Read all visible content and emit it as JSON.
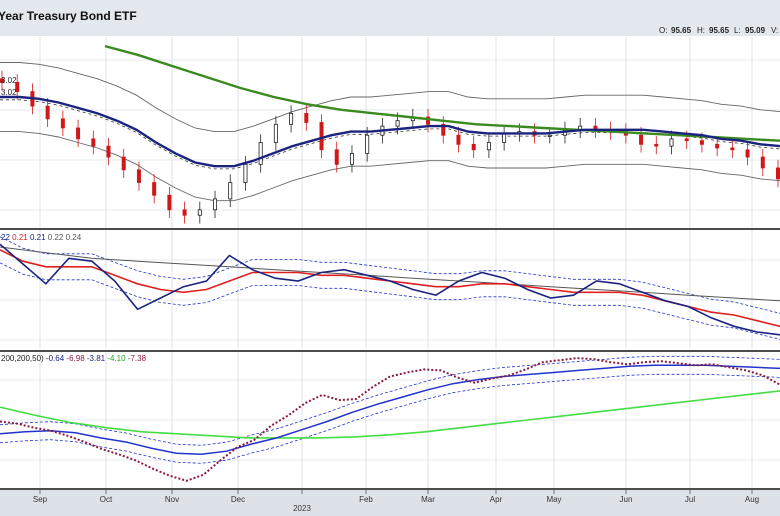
{
  "header": {
    "title": "Year Treasury Bond ETF",
    "ohlc": [
      {
        "label": "O:",
        "value": "95.65"
      },
      {
        "label": "H:",
        "value": "95.65"
      },
      {
        "label": "L:",
        "value": "95.09"
      },
      {
        "label": "V:",
        "value": ""
      }
    ]
  },
  "colors": {
    "background": "#ffffff",
    "header_bg": "#e3e7ee",
    "axis_bg": "#dde1e8",
    "grid": "#cfd5de",
    "candle_up": "#222222",
    "candle_down": "#d01818",
    "ma_short": "#1a237e",
    "ma_long": "#3a8a1f",
    "band": "#666666",
    "rsi_line": "#1a237e",
    "rsi_ma": "#e02020",
    "rsi_ma_long": "#555555",
    "pmo_dotted": "#8b1a3a",
    "pmo_ma": "#2233cc",
    "pmo_long": "#44dd44"
  },
  "panels": {
    "price": {
      "labels": [
        {
          "text": "3.02",
          "color": "#3a8a1f"
        },
        {
          "text": "3.02",
          "color": "#cc22cc"
        }
      ]
    },
    "rsi": {
      "label_segments": [
        {
          "text": "22",
          "color": "#1a237e"
        },
        {
          "text": " 0.21",
          "color": "#e02020"
        },
        {
          "text": " 0.21",
          "color": "#1a237e"
        },
        {
          "text": " 0.22",
          "color": "#555555"
        },
        {
          "text": " 0.24",
          "color": "#555555"
        }
      ]
    },
    "pmo": {
      "label_segments": [
        {
          "text": "200,200,50)",
          "color": "#222222"
        },
        {
          "text": " -0.64",
          "color": "#1a237e"
        },
        {
          "text": " -6.98",
          "color": "#8b1a3a"
        },
        {
          "text": " -3.81",
          "color": "#1a237e"
        },
        {
          "text": " -4.10",
          "color": "#22aa22"
        },
        {
          "text": " -7.38",
          "color": "#8b1a3a"
        }
      ]
    }
  },
  "chart_data": {
    "type": "line",
    "title": "Year Treasury Bond ETF",
    "xlabel": "",
    "ylabel": "",
    "x_ticks": [
      "Sep",
      "Oct",
      "Nov",
      "Dec",
      "2023",
      "Feb",
      "Mar",
      "Apr",
      "May",
      "Jun",
      "Jul",
      "Aug"
    ],
    "grid": true,
    "price_panel": {
      "series": [
        {
          "role": "price",
          "values": [
            101.5,
            101.0,
            100.2,
            99.5,
            99.0,
            98.4,
            98.0,
            97.4,
            96.7,
            96.0,
            95.3,
            94.5,
            94.2,
            94.5,
            95.1,
            96.0,
            97.0,
            98.2,
            99.2,
            99.8,
            99.3,
            97.8,
            97.0,
            97.6,
            98.6,
            99.1,
            99.4,
            99.6,
            99.2,
            98.6,
            98.1,
            97.8,
            98.2,
            98.7,
            98.8,
            98.6,
            98.6,
            98.9,
            99.1,
            98.9,
            98.8,
            98.6,
            98.1,
            98.0,
            98.4,
            98.3,
            98.1,
            97.9,
            97.8,
            97.4,
            96.8,
            96.2
          ]
        },
        {
          "role": "ma_short",
          "values": [
            100.7,
            100.7,
            100.6,
            100.4,
            100.1,
            99.8,
            99.4,
            98.9,
            98.2,
            97.6,
            97.1,
            96.9,
            96.9,
            97.2,
            97.6,
            98.0,
            98.3,
            98.6,
            98.8,
            98.8,
            98.9,
            99.0,
            99.1,
            99.1,
            98.8,
            98.7,
            98.7,
            98.7,
            98.7,
            98.8,
            98.9,
            98.9,
            98.9,
            98.9,
            98.8,
            98.7,
            98.6,
            98.4,
            98.3,
            98.1,
            98.0
          ]
        },
        {
          "role": "ma_long",
          "values": [
            103.5,
            103.0,
            102.4,
            101.8,
            101.2,
            100.7,
            100.3,
            100.0,
            99.8,
            99.6,
            99.4,
            99.2,
            99.1,
            99.0,
            98.9,
            98.8,
            98.7,
            98.6,
            98.5,
            98.4,
            98.3
          ]
        }
      ]
    },
    "rsi_panel": {
      "series": [
        {
          "role": "rsi",
          "values": [
            0.245,
            0.238,
            0.231,
            0.24,
            0.239,
            0.232,
            0.222,
            0.226,
            0.23,
            0.232,
            0.241,
            0.236,
            0.233,
            0.232,
            0.235,
            0.236,
            0.234,
            0.232,
            0.229,
            0.227,
            0.232,
            0.235,
            0.233,
            0.229,
            0.226,
            0.227,
            0.232,
            0.231,
            0.228,
            0.225,
            0.223,
            0.219,
            0.216,
            0.214,
            0.213
          ]
        },
        {
          "role": "rsi_ma",
          "values": [
            0.243,
            0.239,
            0.237,
            0.237,
            0.237,
            0.234,
            0.231,
            0.229,
            0.228,
            0.229,
            0.232,
            0.235,
            0.235,
            0.235,
            0.234,
            0.234,
            0.233,
            0.232,
            0.231,
            0.23,
            0.23,
            0.231,
            0.231,
            0.23,
            0.229,
            0.228,
            0.228,
            0.228,
            0.227,
            0.225,
            0.223,
            0.221,
            0.22,
            0.218,
            0.216
          ]
        },
        {
          "role": "rsi_ma_long",
          "values": [
            0.244,
            0.242,
            0.24,
            0.239,
            0.238,
            0.237,
            0.236,
            0.235,
            0.234,
            0.233,
            0.232,
            0.231,
            0.23,
            0.229,
            0.228,
            0.227,
            0.226,
            0.225
          ]
        }
      ]
    },
    "pmo_panel": {
      "series": [
        {
          "role": "pmo_dotted",
          "values": [
            -3.0,
            -3.2,
            -3.6,
            -3.9,
            -4.4,
            -5.0,
            -5.7,
            -6.2,
            -6.8,
            -7.6,
            -8.3,
            -8.8,
            -8.2,
            -6.8,
            -5.5,
            -4.8,
            -3.4,
            -2.4,
            -1.2,
            -0.4,
            -0.9,
            -0.8,
            0.4,
            1.4,
            1.8,
            2.1,
            2.0,
            1.3,
            0.8,
            1.2,
            1.5,
            2.1,
            2.8,
            3.0,
            3.2,
            3.1,
            2.8,
            2.6,
            2.8,
            2.9,
            2.7,
            2.5,
            2.6,
            2.3,
            2.0,
            1.5,
            0.6
          ]
        },
        {
          "role": "pmo_ma",
          "values": [
            -4.2,
            -4.0,
            -3.9,
            -4.1,
            -4.6,
            -5.0,
            -5.6,
            -6.1,
            -6.2,
            -5.9,
            -5.2,
            -4.6,
            -3.8,
            -3.0,
            -2.1,
            -1.3,
            -0.6,
            0.1,
            0.7,
            1.1,
            1.4,
            1.6,
            1.8,
            2.0,
            2.2,
            2.4,
            2.5,
            2.5,
            2.5,
            2.4,
            2.3,
            2.2
          ]
        },
        {
          "role": "pmo_long",
          "values": [
            -1.6,
            -2.4,
            -3.1,
            -3.6,
            -4.0,
            -4.2,
            -4.4,
            -4.6,
            -4.6,
            -4.6,
            -4.5,
            -4.3,
            -4.0,
            -3.6,
            -3.2,
            -2.8,
            -2.4,
            -2.0,
            -1.6,
            -1.2,
            -0.8,
            -0.4,
            0.0
          ]
        }
      ]
    }
  }
}
